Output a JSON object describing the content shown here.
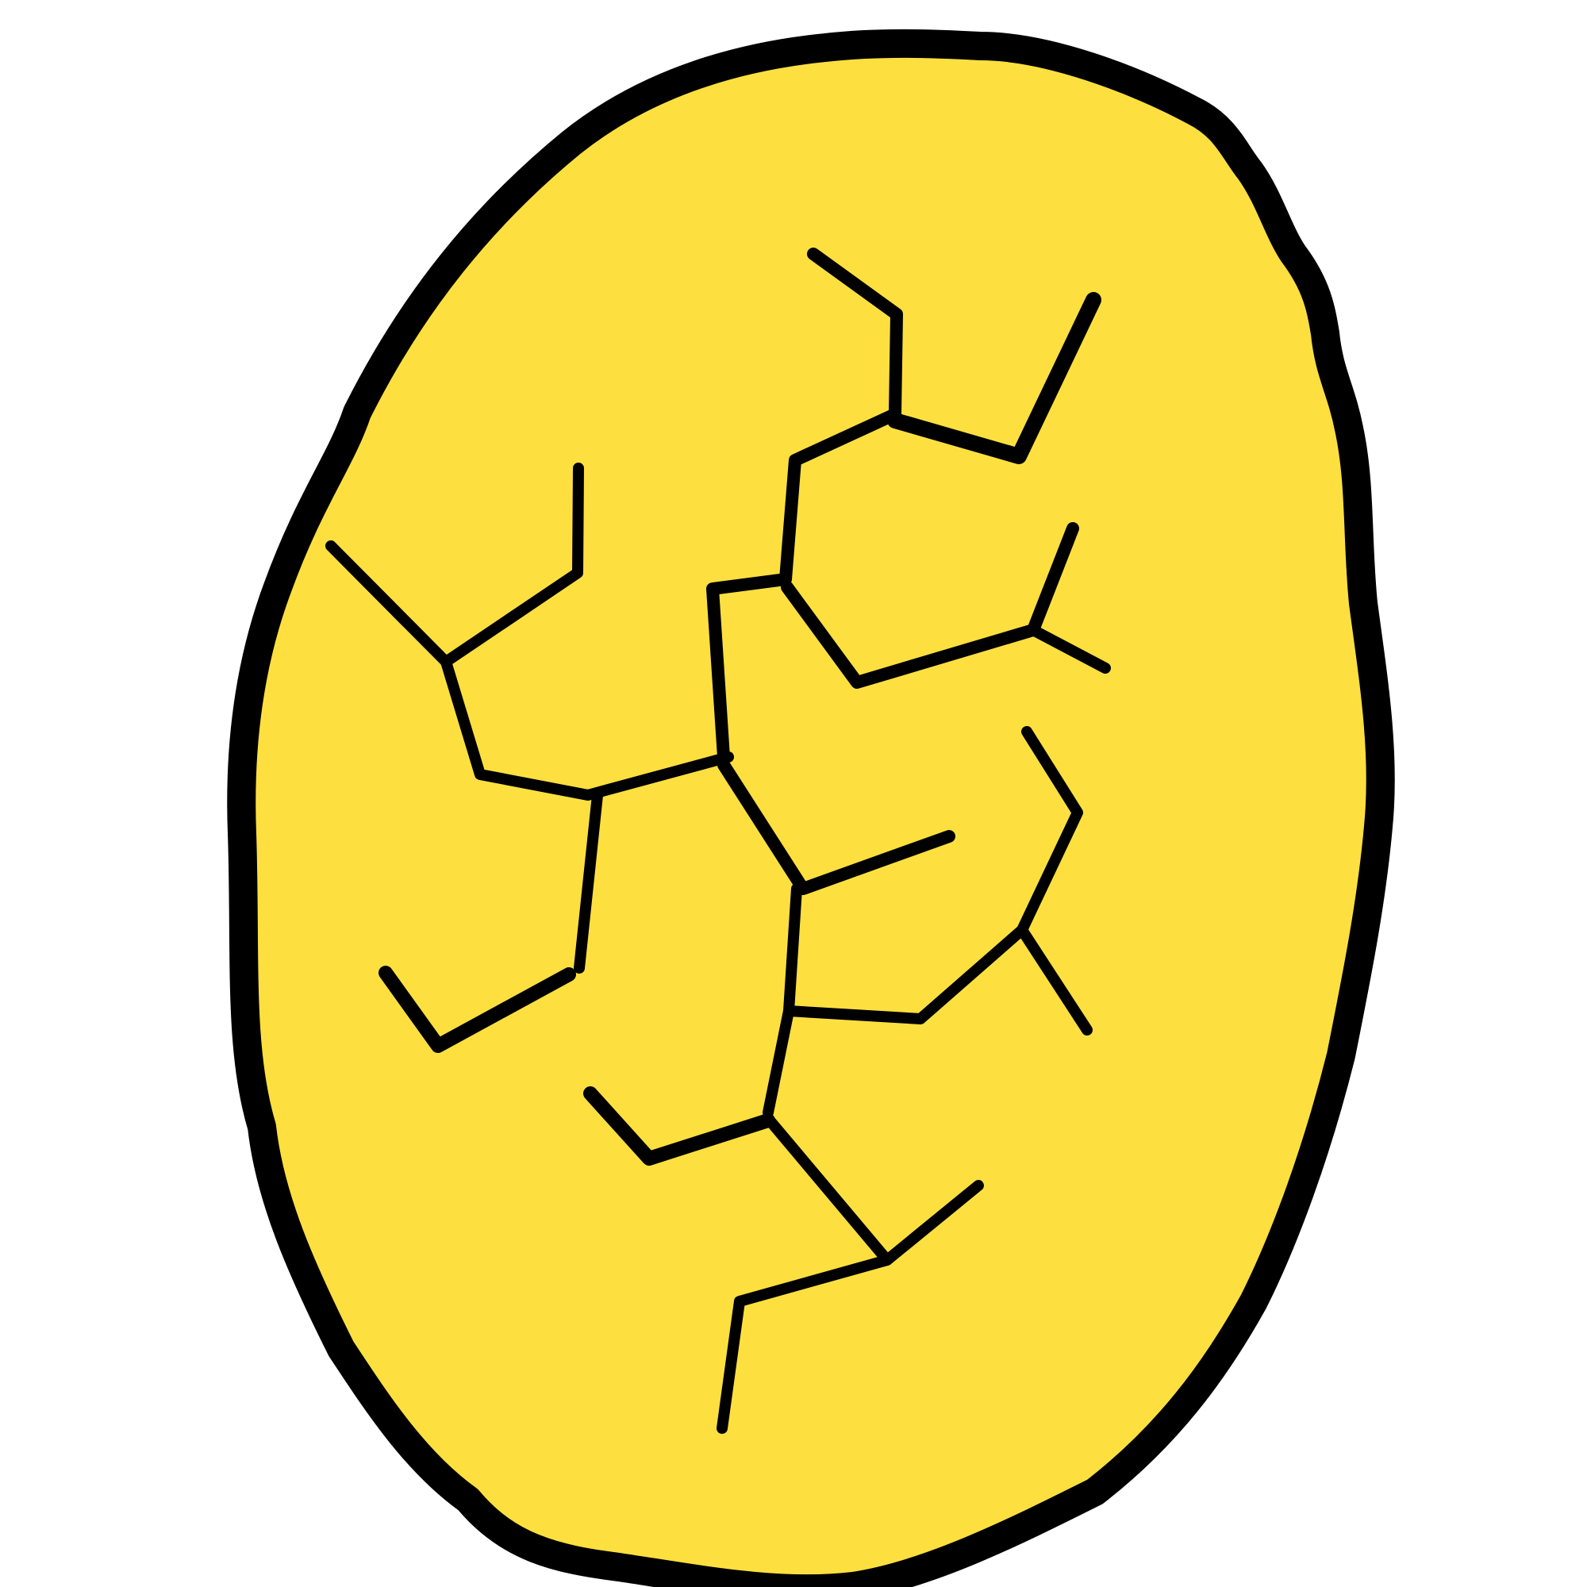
{
  "illustration": {
    "subject": "cracked-egg",
    "colors": {
      "background": "#ffffff",
      "shell_fill": "#FDE03F",
      "outline": "#000000"
    }
  }
}
